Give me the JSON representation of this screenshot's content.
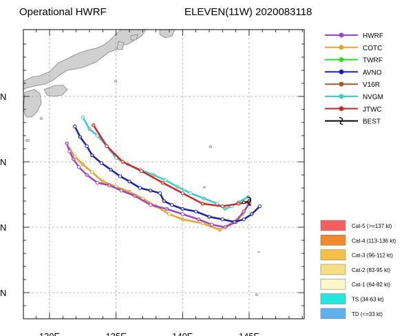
{
  "header": {
    "title_left": "Operational HWRF",
    "title_right": "ELEVEN(11W) 2020083118"
  },
  "axes": {
    "x_ticks": [
      {
        "value": 130,
        "label": "130E"
      },
      {
        "value": 135,
        "label": "135E"
      },
      {
        "value": 140,
        "label": "140E"
      },
      {
        "value": 145,
        "label": "145E"
      }
    ],
    "y_ticks": [
      {
        "value": 30,
        "label": "N"
      },
      {
        "value": 25,
        "label": "N"
      },
      {
        "value": 20,
        "label": "N"
      },
      {
        "value": 15,
        "label": "N"
      }
    ]
  },
  "legend": [
    {
      "name": "HWRF",
      "color": "#a040d0"
    },
    {
      "name": "COTC",
      "color": "#f0a020"
    },
    {
      "name": "TWRF",
      "color": "#20e020"
    },
    {
      "name": "AVNO",
      "color": "#1020c0"
    },
    {
      "name": "V16R",
      "color": "#a05a28"
    },
    {
      "name": "NVGM",
      "color": "#30d0d0"
    },
    {
      "name": "JTWC",
      "color": "#e02020"
    },
    {
      "name": "BEST",
      "color": "#000000"
    }
  ],
  "categories": [
    {
      "label": "Cat-5 (>=137 kt)",
      "color": "#f46060"
    },
    {
      "label": "Cat-4 (113-136 kt)",
      "color": "#f08a2a"
    },
    {
      "label": "Cat-3 (96-112 kt)",
      "color": "#f8c040"
    },
    {
      "label": "Cat-2 (83-95 kt)",
      "color": "#f8e080"
    },
    {
      "label": "Cat-1 (64-82 kt)",
      "color": "#fdf8c8"
    },
    {
      "label": "TS (34-63 kt)",
      "color": "#20e8e0"
    },
    {
      "label": "TD (<=33 kt)",
      "color": "#60b0f0"
    }
  ],
  "chart_data": {
    "type": "line",
    "x_unit": "deg E",
    "y_unit": "deg N",
    "series": [
      {
        "name": "HWRF",
        "points": [
          [
            145.0,
            21.8
          ],
          [
            144.6,
            21.2
          ],
          [
            144.0,
            20.4
          ],
          [
            143.2,
            20.0
          ],
          [
            142.2,
            20.2
          ],
          [
            141.2,
            20.6
          ],
          [
            140.0,
            21.0
          ],
          [
            138.8,
            21.4
          ],
          [
            137.6,
            21.7
          ],
          [
            136.4,
            22.4
          ],
          [
            135.4,
            22.8
          ],
          [
            134.5,
            23.2
          ],
          [
            133.6,
            23.4
          ],
          [
            132.8,
            24.0
          ],
          [
            132.2,
            24.6
          ],
          [
            131.8,
            25.2
          ],
          [
            131.5,
            25.8
          ],
          [
            131.3,
            26.4
          ]
        ]
      },
      {
        "name": "COTC",
        "points": [
          [
            145.0,
            21.8
          ],
          [
            144.5,
            21.0
          ],
          [
            143.8,
            20.4
          ],
          [
            142.8,
            19.8
          ],
          [
            141.5,
            20.3
          ],
          [
            140.0,
            20.6
          ],
          [
            139.0,
            21.0
          ],
          [
            138.0,
            21.6
          ],
          [
            137.0,
            22.2
          ],
          [
            136.0,
            22.7
          ],
          [
            135.0,
            23.1
          ],
          [
            134.0,
            23.5
          ],
          [
            133.2,
            24.2
          ],
          [
            132.5,
            24.8
          ],
          [
            131.9,
            25.4
          ],
          [
            131.5,
            26.0
          ]
        ]
      },
      {
        "name": "AVNO",
        "points": [
          [
            145.8,
            21.6
          ],
          [
            145.2,
            21.0
          ],
          [
            144.6,
            20.6
          ],
          [
            143.9,
            20.4
          ],
          [
            143.0,
            20.6
          ],
          [
            142.0,
            20.8
          ],
          [
            141.0,
            21.2
          ],
          [
            140.0,
            21.4
          ],
          [
            139.2,
            21.7
          ],
          [
            138.6,
            22.0
          ],
          [
            138.3,
            22.6
          ],
          [
            137.6,
            22.8
          ],
          [
            136.8,
            23.0
          ],
          [
            136.0,
            23.5
          ],
          [
            135.3,
            23.9
          ],
          [
            134.6,
            24.4
          ],
          [
            133.9,
            24.9
          ],
          [
            133.2,
            25.5
          ],
          [
            132.8,
            26.2
          ],
          [
            132.3,
            26.9
          ],
          [
            131.9,
            27.7
          ]
        ]
      },
      {
        "name": "NVGM",
        "points": [
          [
            144.9,
            22.3
          ],
          [
            144.2,
            21.9
          ],
          [
            143.7,
            21.6
          ],
          [
            143.2,
            21.4
          ],
          [
            142.6,
            21.8
          ],
          [
            141.6,
            22.2
          ],
          [
            140.6,
            22.6
          ],
          [
            139.6,
            23.1
          ],
          [
            138.7,
            23.6
          ],
          [
            137.8,
            24.0
          ],
          [
            136.8,
            24.4
          ],
          [
            135.9,
            24.8
          ],
          [
            135.0,
            25.3
          ],
          [
            134.3,
            26.2
          ],
          [
            133.6,
            27.0
          ],
          [
            133.0,
            27.5
          ],
          [
            132.5,
            28.4
          ]
        ]
      },
      {
        "name": "JTWC",
        "points": [
          [
            145.0,
            21.9
          ],
          [
            144.2,
            21.8
          ],
          [
            143.0,
            21.6
          ],
          [
            141.5,
            21.8
          ],
          [
            140.0,
            22.6
          ],
          [
            138.5,
            23.4
          ],
          [
            136.9,
            24.3
          ],
          [
            135.5,
            25.0
          ],
          [
            134.3,
            26.2
          ],
          [
            133.3,
            27.8
          ]
        ]
      },
      {
        "name": "BEST",
        "points": [
          [
            144.6,
            21.9
          ],
          [
            145.0,
            22.0
          ]
        ]
      }
    ]
  }
}
